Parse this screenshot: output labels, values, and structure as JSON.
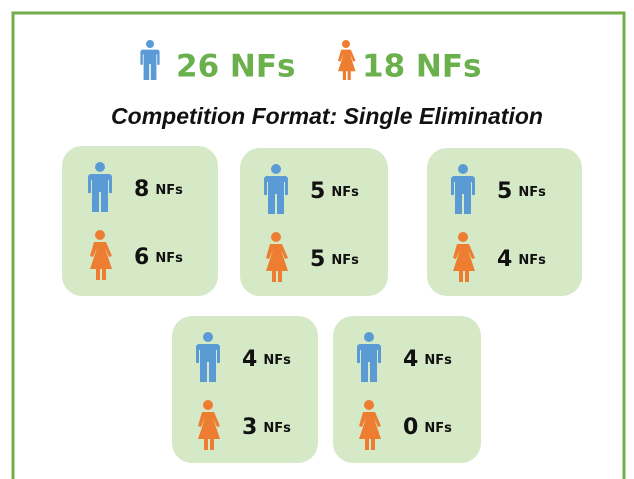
{
  "header": {
    "male": "26 NFs",
    "female": "18 NFs"
  },
  "subtitle": "Competition Format: Single Elimination",
  "unit": "NFs",
  "boxes": [
    {
      "male": 8,
      "female": 6
    },
    {
      "male": 5,
      "female": 5
    },
    {
      "male": 5,
      "female": 4
    },
    {
      "male": 4,
      "female": 3
    },
    {
      "male": 4,
      "female": 0
    }
  ]
}
